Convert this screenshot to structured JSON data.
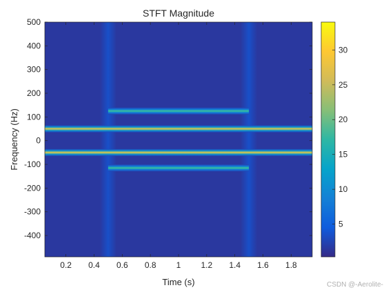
{
  "chart_data": {
    "type": "heatmap",
    "title": "STFT Magnitude",
    "xlabel": "Time (s)",
    "ylabel": "Frequency (Hz)",
    "xlim": [
      0.05,
      1.95
    ],
    "ylim": [
      -490,
      500
    ],
    "xticks": [
      0.2,
      0.4,
      0.6,
      0.8,
      1,
      1.2,
      1.4,
      1.6,
      1.8
    ],
    "yticks": [
      -400,
      -300,
      -200,
      -100,
      0,
      100,
      200,
      300,
      400,
      500
    ],
    "colorbar": {
      "range": [
        0.3,
        34
      ],
      "ticks": [
        5,
        10,
        15,
        20,
        25,
        30
      ],
      "colormap": "parula",
      "colors": [
        "#352a87",
        "#0f5cdd",
        "#1481d6",
        "#06a4ca",
        "#2eb7a4",
        "#87bf77",
        "#d1bb59",
        "#fec832",
        "#f9fb0e"
      ]
    },
    "components": [
      {
        "frequency_hz": 50,
        "t_start": 0.05,
        "t_end": 1.95,
        "magnitude": 28
      },
      {
        "frequency_hz": -50,
        "t_start": 0.05,
        "t_end": 1.95,
        "magnitude": 28
      },
      {
        "frequency_hz": 125,
        "t_start": 0.5,
        "t_end": 1.5,
        "magnitude": 19
      },
      {
        "frequency_hz": -115,
        "t_start": 0.5,
        "t_end": 1.5,
        "magnitude": 19
      }
    ],
    "background_magnitude": 1.5,
    "grid": false
  },
  "watermark": "CSDN @-Aerolite-"
}
